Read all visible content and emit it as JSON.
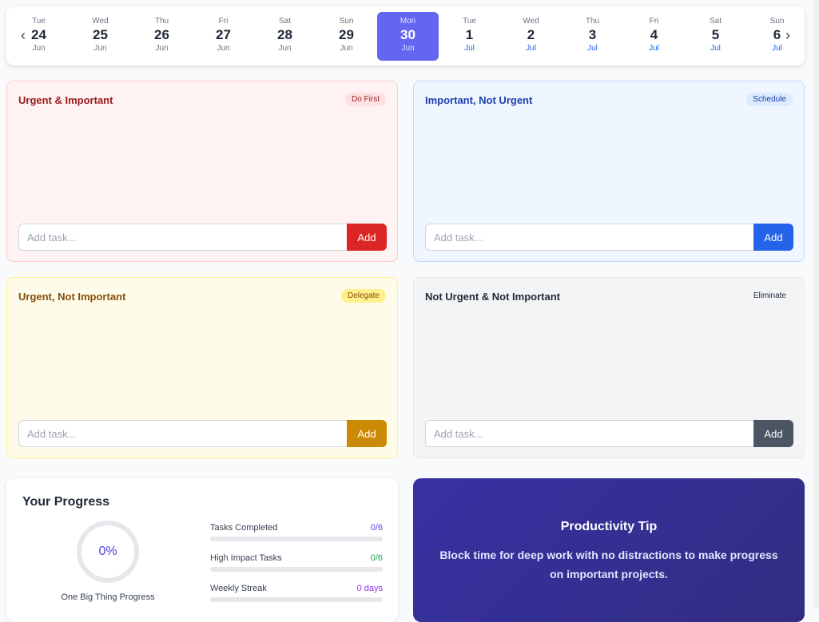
{
  "calendar": {
    "days": [
      {
        "dw": "Tue",
        "dn": "24",
        "dm": "Jun"
      },
      {
        "dw": "Wed",
        "dn": "25",
        "dm": "Jun"
      },
      {
        "dw": "Thu",
        "dn": "26",
        "dm": "Jun"
      },
      {
        "dw": "Fri",
        "dn": "27",
        "dm": "Jun"
      },
      {
        "dw": "Sat",
        "dn": "28",
        "dm": "Jun"
      },
      {
        "dw": "Sun",
        "dn": "29",
        "dm": "Jun"
      },
      {
        "dw": "Mon",
        "dn": "30",
        "dm": "Jun",
        "selected": true
      },
      {
        "dw": "Tue",
        "dn": "1",
        "dm": "Jul"
      },
      {
        "dw": "Wed",
        "dn": "2",
        "dm": "Jul"
      },
      {
        "dw": "Thu",
        "dn": "3",
        "dm": "Jul"
      },
      {
        "dw": "Fri",
        "dn": "4",
        "dm": "Jul"
      },
      {
        "dw": "Sat",
        "dn": "5",
        "dm": "Jul"
      },
      {
        "dw": "Sun",
        "dn": "6",
        "dm": "Jul"
      }
    ],
    "prev_icon": "chevron-left-icon",
    "next_icon": "chevron-right-icon"
  },
  "quadrants": [
    {
      "title": "Urgent & Important",
      "badge": "Do First",
      "placeholder": "Add task...",
      "button": "Add",
      "bg": "#fef2f2",
      "border": "#fecaca",
      "title_color": "#991b1b",
      "badge_bg": "#fee2e2",
      "badge_color": "#991b1b",
      "btn": "#dc2626"
    },
    {
      "title": "Important, Not Urgent",
      "badge": "Schedule",
      "placeholder": "Add task...",
      "button": "Add",
      "bg": "#eff6ff",
      "border": "#bfdbfe",
      "title_color": "#1e40af",
      "badge_bg": "#dbeafe",
      "badge_color": "#1e40af",
      "btn": "#2563eb"
    },
    {
      "title": "Urgent, Not Important",
      "badge": "Delegate",
      "placeholder": "Add task...",
      "button": "Add",
      "bg": "#fefce8",
      "border": "#fef08a",
      "title_color": "#854d0e",
      "badge_bg": "#fef08a",
      "badge_color": "#854d0e",
      "btn": "#ca8a04"
    },
    {
      "title": "Not Urgent & Not Important",
      "badge": "Eliminate",
      "placeholder": "Add task...",
      "button": "Add",
      "bg": "#f3f4f6",
      "border": "#e5e7eb",
      "title_color": "#1f2937",
      "badge_bg": "#f3f4f6",
      "badge_color": "#1f2937",
      "btn": "#4b5563"
    }
  ],
  "progress": {
    "title": "Your Progress",
    "ring_value": "0%",
    "ring_label": "One Big Thing Progress",
    "stats": [
      {
        "label": "Tasks Completed",
        "value": "0/6",
        "color": "#4f46e5",
        "fraction": 0
      },
      {
        "label": "High Impact Tasks",
        "value": "0/6",
        "color": "#16a34a",
        "fraction": 0
      },
      {
        "label": "Weekly Streak",
        "value": "0 days",
        "color": "#9333ea",
        "fraction": 0
      }
    ]
  },
  "tip": {
    "title": "Productivity Tip",
    "text": "Block time for deep work with no distractions to make progress on important projects."
  }
}
